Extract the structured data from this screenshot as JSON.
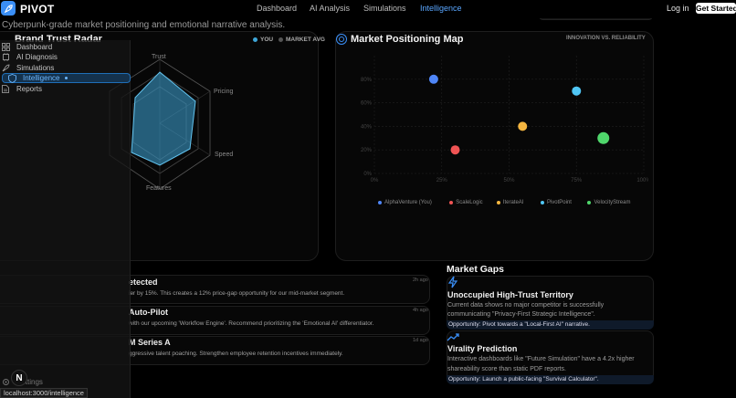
{
  "nav": {
    "brand": "PIVOT",
    "links": [
      "Dashboard",
      "AI Analysis",
      "Simulations",
      "Intelligence"
    ],
    "active": "Intelligence",
    "login": "Log in",
    "cta": "Get Started"
  },
  "page": {
    "subtitle": "Cyberpunk-grade market positioning and emotional narrative analysis."
  },
  "radar": {
    "title": "Brand Trust Radar",
    "legend_you": "YOU",
    "legend_market": "MARKET AVG",
    "axes": [
      "Trust",
      "Pricing",
      "Speed",
      "Features"
    ]
  },
  "positioning": {
    "title": "Market Positioning Map",
    "tag": "INNOVATION VS. RELIABILITY"
  },
  "chart_data": {
    "type": "scatter",
    "xlim": [
      0,
      100
    ],
    "ylim": [
      0,
      100
    ],
    "x_ticks": [
      "0%",
      "25%",
      "50%",
      "75%",
      "100%"
    ],
    "y_ticks": [
      "0%",
      "20%",
      "40%",
      "60%",
      "80%"
    ],
    "series": [
      {
        "name": "AlphaVenture (You)",
        "color": "#4f86f7",
        "x": 22,
        "y": 80
      },
      {
        "name": "ScaleLogic",
        "color": "#f05454",
        "x": 30,
        "y": 20
      },
      {
        "name": "IterateAI",
        "color": "#f5b640",
        "x": 55,
        "y": 40
      },
      {
        "name": "PivotPoint",
        "color": "#50c6f5",
        "x": 75,
        "y": 70
      },
      {
        "name": "VelocityStream",
        "color": "#4fd66b",
        "x": 85,
        "y": 30
      }
    ]
  },
  "feed": [
    {
      "title": "etected",
      "text": "ier by 15%. This creates a 12% price-gap opportunity for our mid-market segment.",
      "time": "2h ago"
    },
    {
      "title": "Auto-Pilot",
      "text": "with our upcoming 'Workflow Engine'. Recommend prioritizing the 'Emotional AI' differentiator.",
      "time": "4h ago"
    },
    {
      "title": "M Series A",
      "text": "ggressive talent poaching. Strengthen employee retention incentives immediately.",
      "time": "1d ago"
    }
  ],
  "gaps": {
    "title": "Market Gaps",
    "items": [
      {
        "icon": "lightning-icon",
        "title": "Unoccupied High-Trust Territory",
        "text_lines": [
          "Current data shows no major competitor is successfully",
          "communicating \"Privacy-First Strategic Intelligence\"."
        ],
        "opportunity": "Opportunity: Pivot towards a \"Local-First AI\" narrative."
      },
      {
        "icon": "trend-up-icon",
        "title": "Virality Prediction",
        "text_lines": [
          "Interactive dashboards like \"Future Simulation\" have a 4.2x higher",
          "shareability score than static PDF reports."
        ],
        "opportunity": "Opportunity: Launch a public-facing \"Survival Calculator\"."
      }
    ]
  },
  "sidebar": {
    "items": [
      "Dashboard",
      "AI Diagnosis",
      "Simulations",
      "Intelligence",
      "Reports"
    ],
    "active": "Intelligence",
    "settings": "Settings",
    "avatar_initial": "N"
  },
  "statusbar": {
    "url": "localhost:3000/intelligence"
  },
  "colors": {
    "accent": "#3a8ef6",
    "you_fill": "#3ea6d8"
  }
}
